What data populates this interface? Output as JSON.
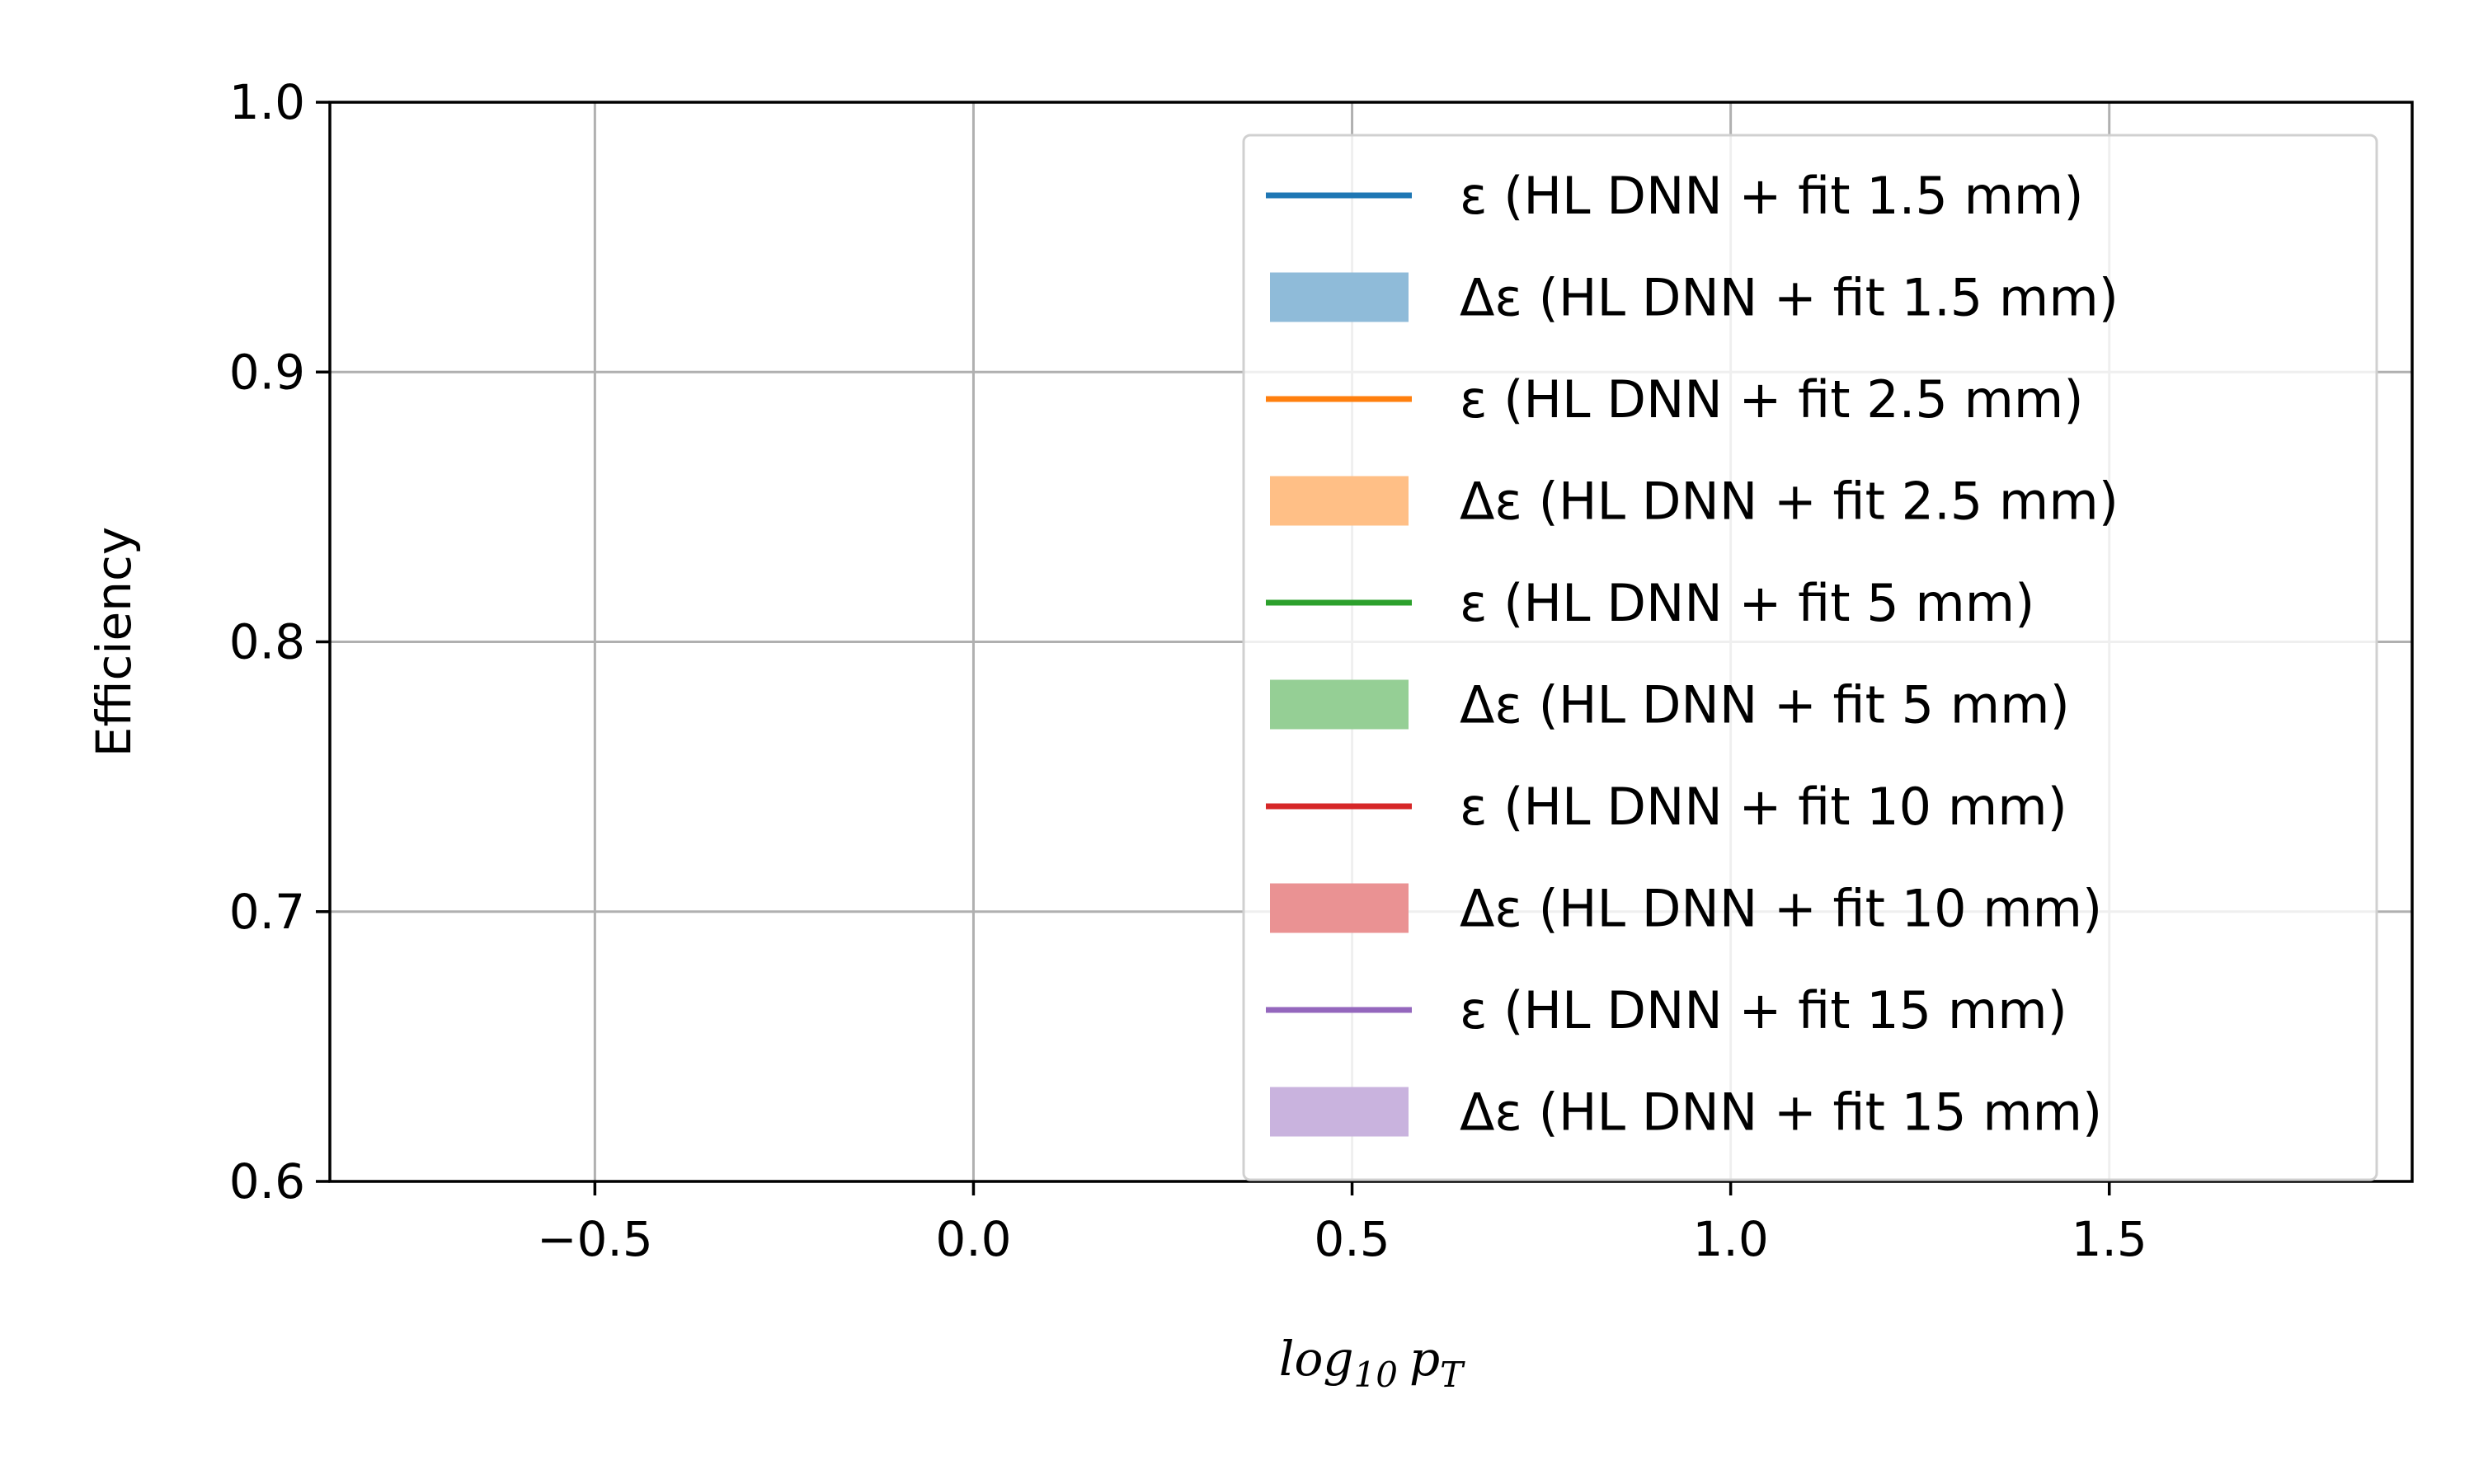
{
  "chart_data": {
    "type": "line",
    "xlabel": "log₁₀ p_T",
    "xlabel_parts": {
      "base": "log",
      "sub": "10",
      "var": "p",
      "var_sub": "T"
    },
    "ylabel": "Efficiency",
    "xlim": [
      -0.85,
      1.9
    ],
    "ylim": [
      0.6,
      1.0
    ],
    "xticks": [
      -0.5,
      0.0,
      0.5,
      1.0,
      1.5
    ],
    "xtick_labels": [
      "−0.5",
      "0.0",
      "0.5",
      "1.0",
      "1.5"
    ],
    "yticks": [
      0.6,
      0.7,
      0.8,
      0.9,
      1.0
    ],
    "ytick_labels": [
      "0.6",
      "0.7",
      "0.8",
      "0.9",
      "1.0"
    ],
    "grid": true,
    "legend_placement": "top-right",
    "series": [
      {
        "name": "ε (HL DNN + fit 1.5 mm)",
        "kind": "line",
        "color": "#1f77b4",
        "x": [],
        "y": []
      },
      {
        "name": "Δε (HL DNN + fit 1.5 mm)",
        "kind": "band",
        "color": "#8fbbd9",
        "x": [],
        "y_low": [],
        "y_high": []
      },
      {
        "name": "ε (HL DNN + fit 2.5 mm)",
        "kind": "line",
        "color": "#ff7f0e",
        "x": [],
        "y": []
      },
      {
        "name": "Δε (HL DNN + fit 2.5 mm)",
        "kind": "band",
        "color": "#ffbf86",
        "x": [],
        "y_low": [],
        "y_high": []
      },
      {
        "name": "ε (HL DNN + fit 5 mm)",
        "kind": "line",
        "color": "#2ca02c",
        "x": [],
        "y": []
      },
      {
        "name": "Δε (HL DNN + fit 5 mm)",
        "kind": "band",
        "color": "#95cf95",
        "x": [],
        "y_low": [],
        "y_high": []
      },
      {
        "name": "ε (HL DNN + fit 10 mm)",
        "kind": "line",
        "color": "#d62728",
        "x": [],
        "y": []
      },
      {
        "name": "Δε (HL DNN + fit 10 mm)",
        "kind": "band",
        "color": "#ea9293",
        "x": [],
        "y_low": [],
        "y_high": []
      },
      {
        "name": "ε (HL DNN + fit 15 mm)",
        "kind": "line",
        "color": "#9467bd",
        "x": [],
        "y": []
      },
      {
        "name": "Δε (HL DNN + fit 15 mm)",
        "kind": "band",
        "color": "#c9b3de",
        "x": [],
        "y_low": [],
        "y_high": []
      }
    ]
  }
}
